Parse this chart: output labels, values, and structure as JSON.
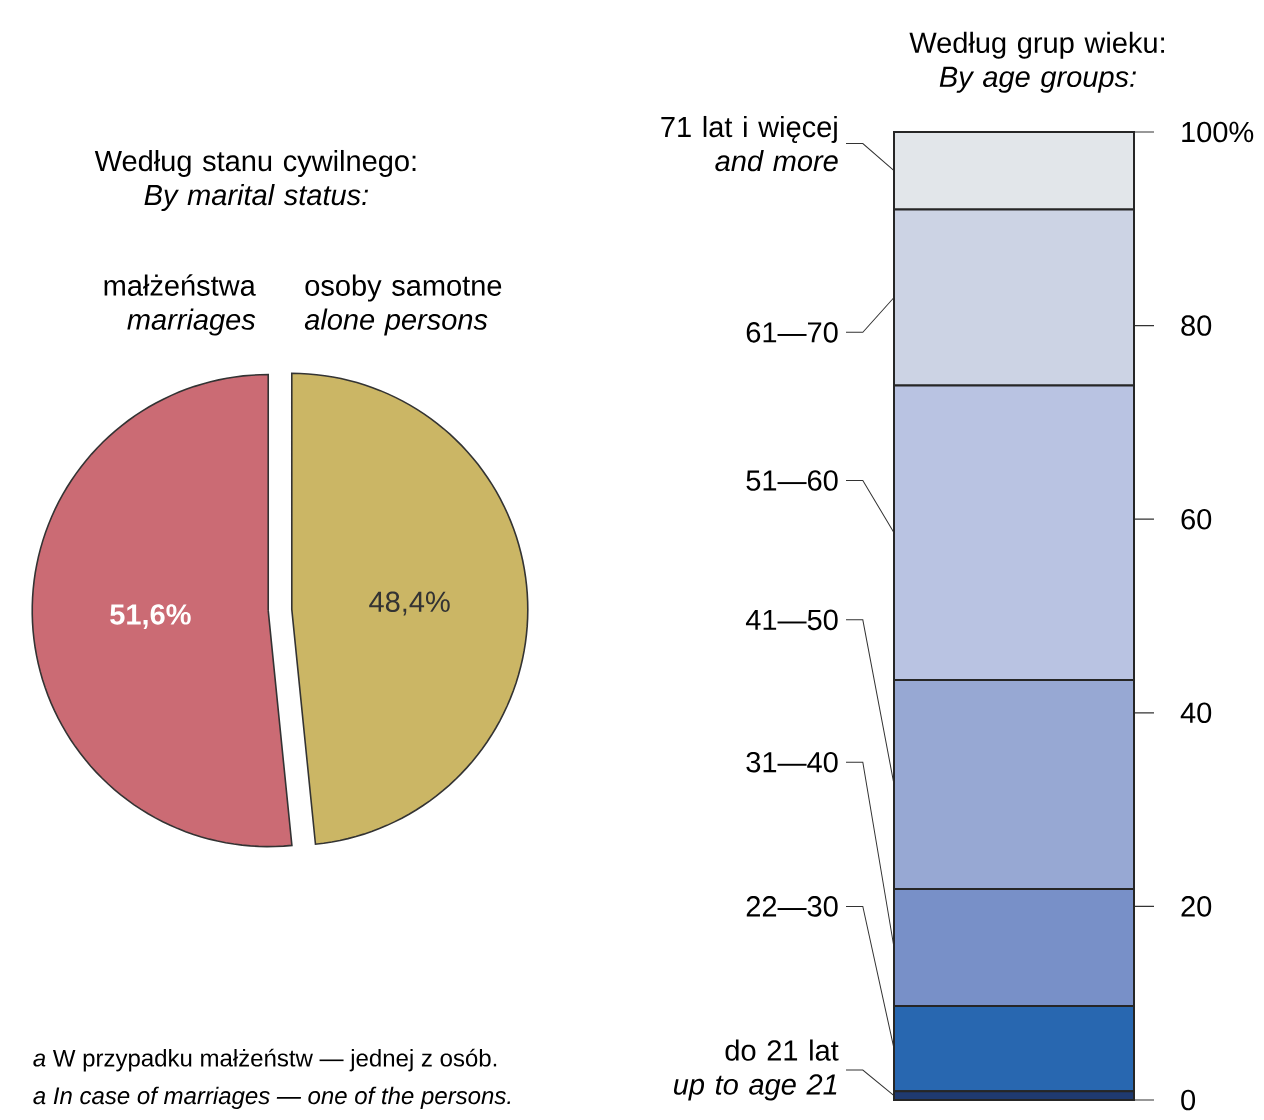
{
  "chart_data": [
    {
      "type": "pie",
      "title": "Według stanu cywilnego: *By marital status:*",
      "categories": [
        "małżeństwa *marriages*",
        "osoby samotne *alone persons*"
      ],
      "values": [
        51.6,
        48.4
      ],
      "value_labels": [
        "51,6%",
        "48,4%"
      ],
      "colors": [
        "#cb6b74",
        "#cbb665"
      ],
      "annotations": [
        "*a* W przypadku małżeństw — jednej z osób.",
        "a In case of marriages — one of the persons."
      ]
    },
    {
      "type": "bar",
      "stacked": true,
      "legend": "left",
      "title": "Według grup wieku: *By age groups:*",
      "categories": [
        null
      ],
      "series": [
        {
          "name": "do 21 lat *up to age 21*",
          "color": "#1f3a70",
          "values": [
            0.9
          ]
        },
        {
          "name": "22—30",
          "color": "#2867b0",
          "values": [
            8.8
          ]
        },
        {
          "name": "31—40",
          "color": "#7890c8",
          "values": [
            12.1
          ]
        },
        {
          "name": "41—50",
          "color": "#97a8d3",
          "values": [
            21.6
          ]
        },
        {
          "name": "51—60",
          "color": "#b9c3e2",
          "values": [
            30.4
          ]
        },
        {
          "name": "61—70",
          "color": "#ccd3e4",
          "values": [
            18.2
          ]
        },
        {
          "name": "71 lat i więcej *and more*",
          "color": "#e2e6ea",
          "values": [
            8.0
          ]
        }
      ],
      "ylim": [
        0,
        100
      ],
      "yticks": [
        0,
        20,
        40,
        60,
        80,
        {
          "value": 100,
          "label": "100%"
        }
      ]
    }
  ]
}
